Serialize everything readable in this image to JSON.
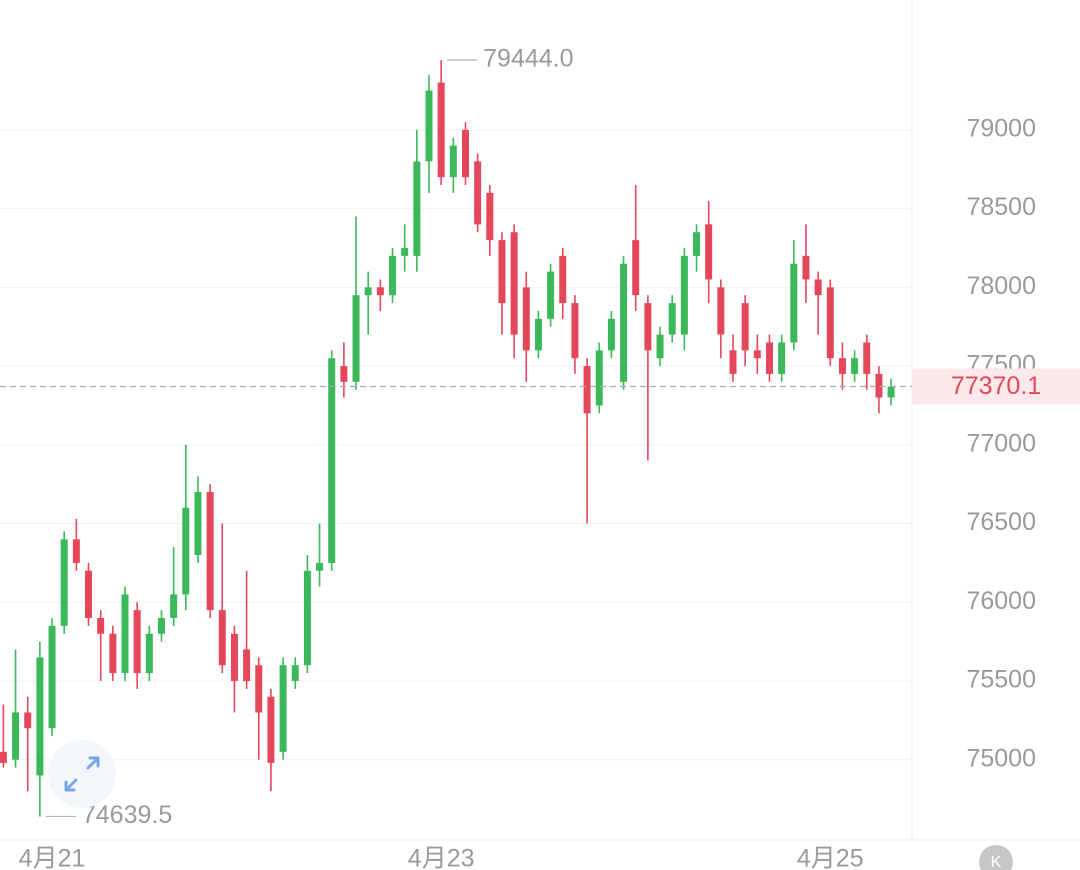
{
  "chart_data": {
    "type": "candlestick",
    "categories": [
      null,
      null,
      null,
      null,
      "4月21",
      null,
      null,
      null,
      null,
      null,
      null,
      null,
      null,
      null,
      null,
      null,
      null,
      null,
      null,
      null,
      null,
      null,
      null,
      null,
      null,
      null,
      null,
      null,
      null,
      null,
      null,
      null,
      null,
      null,
      null,
      null,
      "4月23",
      null,
      null,
      null,
      null,
      null,
      null,
      null,
      null,
      null,
      null,
      null,
      null,
      null,
      null,
      null,
      null,
      null,
      null,
      null,
      null,
      null,
      null,
      null,
      null,
      null,
      null,
      null,
      null,
      null,
      null,
      null,
      "4月25",
      null,
      null,
      null,
      null,
      null
    ],
    "open": [
      75050,
      75000,
      75300,
      74900,
      75200,
      75850,
      76400,
      76200,
      75900,
      75800,
      75550,
      75950,
      75550,
      75800,
      75900,
      76050,
      76300,
      76700,
      75950,
      75800,
      75700,
      75600,
      75400,
      75050,
      75500,
      75600,
      76200,
      76250,
      77500,
      77400,
      77950,
      78000,
      77950,
      78200,
      78200,
      78800,
      79300,
      78700,
      79000,
      78800,
      78600,
      78300,
      78350,
      78000,
      77600,
      77800,
      78200,
      77900,
      77500,
      77250,
      77600,
      77400,
      78300,
      77900,
      77550,
      77700,
      77700,
      78200,
      78400,
      78000,
      77600,
      77900,
      77600,
      77650,
      77450,
      77650,
      78200,
      78050,
      78000,
      77550,
      77450,
      77650,
      77450,
      77300
    ],
    "high": [
      75350,
      75700,
      75400,
      75750,
      75900,
      76450,
      76530,
      76250,
      75950,
      75850,
      76100,
      76000,
      75850,
      75950,
      76350,
      77000,
      76800,
      76750,
      76500,
      75850,
      76200,
      75650,
      75450,
      75650,
      75650,
      76300,
      76500,
      77600,
      77650,
      78450,
      78100,
      78050,
      78250,
      78400,
      79000,
      79350,
      79444,
      78950,
      79050,
      78850,
      78650,
      78350,
      78400,
      78100,
      77850,
      78150,
      78250,
      77950,
      77550,
      77650,
      77850,
      78200,
      78650,
      77950,
      77750,
      77950,
      78250,
      78400,
      78550,
      78050,
      77700,
      77950,
      77700,
      77700,
      77700,
      78300,
      78400,
      78100,
      78050,
      77650,
      77600,
      77700,
      77500,
      77420
    ],
    "low": [
      74950,
      74950,
      74800,
      74639.5,
      75150,
      75800,
      76200,
      75850,
      75500,
      75500,
      75500,
      75450,
      75500,
      75750,
      75850,
      75950,
      76250,
      75900,
      75550,
      75300,
      75450,
      75000,
      74800,
      75000,
      75450,
      75550,
      76100,
      76200,
      77300,
      77350,
      77700,
      77850,
      77900,
      78100,
      78100,
      78600,
      78650,
      78600,
      78650,
      78350,
      78200,
      77700,
      77550,
      77400,
      77550,
      77750,
      77800,
      77450,
      76500,
      77200,
      77550,
      77350,
      77850,
      76900,
      77500,
      77650,
      77600,
      78100,
      77900,
      77550,
      77400,
      77500,
      77450,
      77400,
      77400,
      77600,
      77900,
      77700,
      77500,
      77350,
      77400,
      77350,
      77200,
      77250
    ],
    "close": [
      74980,
      75300,
      75200,
      75650,
      75850,
      76400,
      76250,
      75900,
      75800,
      75550,
      76050,
      75550,
      75800,
      75900,
      76050,
      76600,
      76700,
      75950,
      75600,
      75500,
      75500,
      75300,
      74980,
      75600,
      75600,
      76200,
      76250,
      77550,
      77400,
      77950,
      78000,
      77950,
      78200,
      78250,
      78800,
      79250,
      78700,
      78900,
      78700,
      78400,
      78300,
      77900,
      77700,
      77600,
      77800,
      78100,
      77900,
      77550,
      77200,
      77600,
      77800,
      78150,
      77950,
      77600,
      77700,
      77900,
      78200,
      78350,
      78050,
      77700,
      77450,
      77600,
      77550,
      77450,
      77650,
      78150,
      78050,
      77950,
      77550,
      77450,
      77550,
      77450,
      77300,
      77370.1
    ],
    "up_color": "#3bb85a",
    "down_color": "#e4475a",
    "ylim": [
      74490,
      79825
    ],
    "yticks": [
      75000,
      75500,
      76000,
      76500,
      77000,
      77500,
      78000,
      78500,
      79000
    ],
    "grid": true,
    "annotations": [
      {
        "value": 79444,
        "label": "79444.0",
        "index": 36
      },
      {
        "value": 74639.5,
        "label": "74639.5",
        "index": 3
      }
    ],
    "last_price": 77370.1
  }
}
